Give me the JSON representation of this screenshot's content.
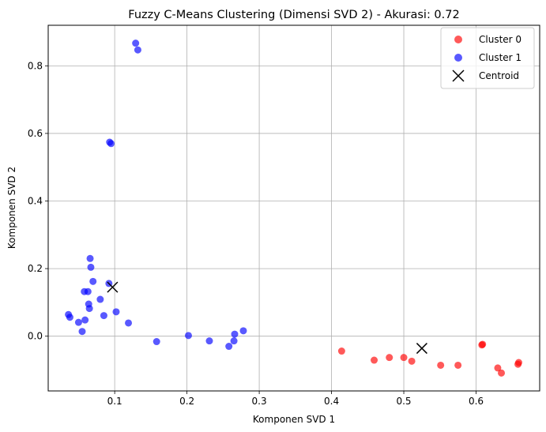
{
  "chart_data": {
    "type": "scatter",
    "title": "Fuzzy C-Means Clustering (Dimensi SVD 2) - Akurasi: 0.72",
    "xlabel": "Komponen SVD 1",
    "ylabel": "Komponen SVD 2",
    "xlim": [
      0.008,
      0.688
    ],
    "ylim": [
      -0.162,
      0.92
    ],
    "xticks": [
      0.1,
      0.2,
      0.3,
      0.4,
      0.5,
      0.6
    ],
    "yticks": [
      0.0,
      0.2,
      0.4,
      0.6,
      0.8
    ],
    "xtick_labels": [
      "0.1",
      "0.2",
      "0.3",
      "0.4",
      "0.5",
      "0.6"
    ],
    "ytick_labels": [
      "0.0",
      "0.2",
      "0.4",
      "0.6",
      "0.8"
    ],
    "grid": true,
    "legend_position": "top-right",
    "series": [
      {
        "name": "Cluster 0",
        "color": "#ff0000",
        "points": [
          [
            0.414,
            -0.044
          ],
          [
            0.459,
            -0.071
          ],
          [
            0.48,
            -0.063
          ],
          [
            0.5,
            -0.063
          ],
          [
            0.511,
            -0.074
          ],
          [
            0.551,
            -0.086
          ],
          [
            0.575,
            -0.086
          ],
          [
            0.608,
            -0.026
          ],
          [
            0.609,
            -0.024
          ],
          [
            0.63,
            -0.094
          ],
          [
            0.635,
            -0.109
          ],
          [
            0.658,
            -0.083
          ],
          [
            0.659,
            -0.078
          ]
        ]
      },
      {
        "name": "Cluster 1",
        "color": "#0000ff",
        "points": [
          [
            0.129,
            0.867
          ],
          [
            0.132,
            0.847
          ],
          [
            0.093,
            0.574
          ],
          [
            0.095,
            0.57
          ],
          [
            0.066,
            0.23
          ],
          [
            0.067,
            0.204
          ],
          [
            0.07,
            0.162
          ],
          [
            0.092,
            0.156
          ],
          [
            0.058,
            0.132
          ],
          [
            0.063,
            0.132
          ],
          [
            0.08,
            0.109
          ],
          [
            0.064,
            0.095
          ],
          [
            0.065,
            0.082
          ],
          [
            0.102,
            0.072
          ],
          [
            0.036,
            0.064
          ],
          [
            0.038,
            0.056
          ],
          [
            0.085,
            0.061
          ],
          [
            0.059,
            0.048
          ],
          [
            0.05,
            0.041
          ],
          [
            0.119,
            0.039
          ],
          [
            0.055,
            0.014
          ],
          [
            0.158,
            -0.016
          ],
          [
            0.202,
            0.002
          ],
          [
            0.231,
            -0.014
          ],
          [
            0.258,
            -0.03
          ],
          [
            0.265,
            -0.014
          ],
          [
            0.266,
            0.006
          ],
          [
            0.278,
            0.016
          ]
        ]
      }
    ],
    "centroids": {
      "name": "Centroid",
      "color": "#000000",
      "marker": "x",
      "points": [
        [
          0.097,
          0.145
        ],
        [
          0.525,
          -0.036
        ]
      ]
    }
  }
}
